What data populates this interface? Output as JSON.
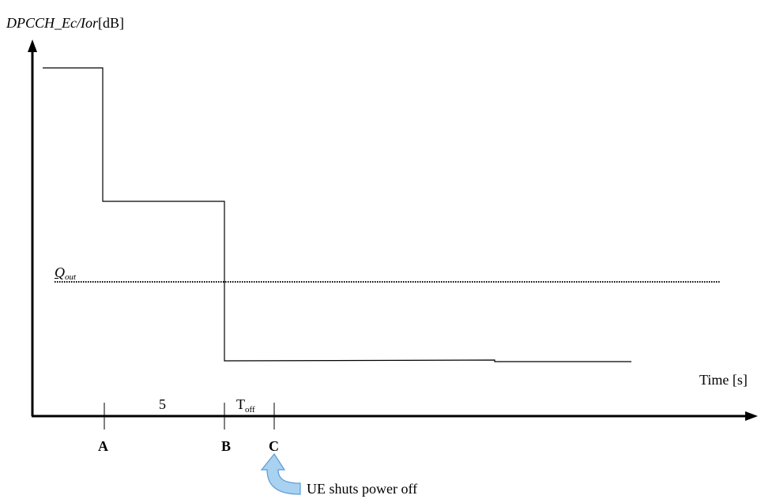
{
  "axes": {
    "y_label_prefix": "DPCCH_Ec/Ior",
    "y_label_unit": "[dB]",
    "x_label": "Time [s]"
  },
  "threshold": {
    "base": "Q",
    "sub": "out"
  },
  "intervals": {
    "a_to_b": "5",
    "b_to_c_base": "T",
    "b_to_c_sub": "off"
  },
  "ticks": [
    {
      "label": "A"
    },
    {
      "label": "B"
    },
    {
      "label": "C"
    }
  ],
  "annotation": {
    "text": "UE shuts power off",
    "arrow_color": "#a9d1f0",
    "arrow_outline": "#5b9bd5"
  }
}
